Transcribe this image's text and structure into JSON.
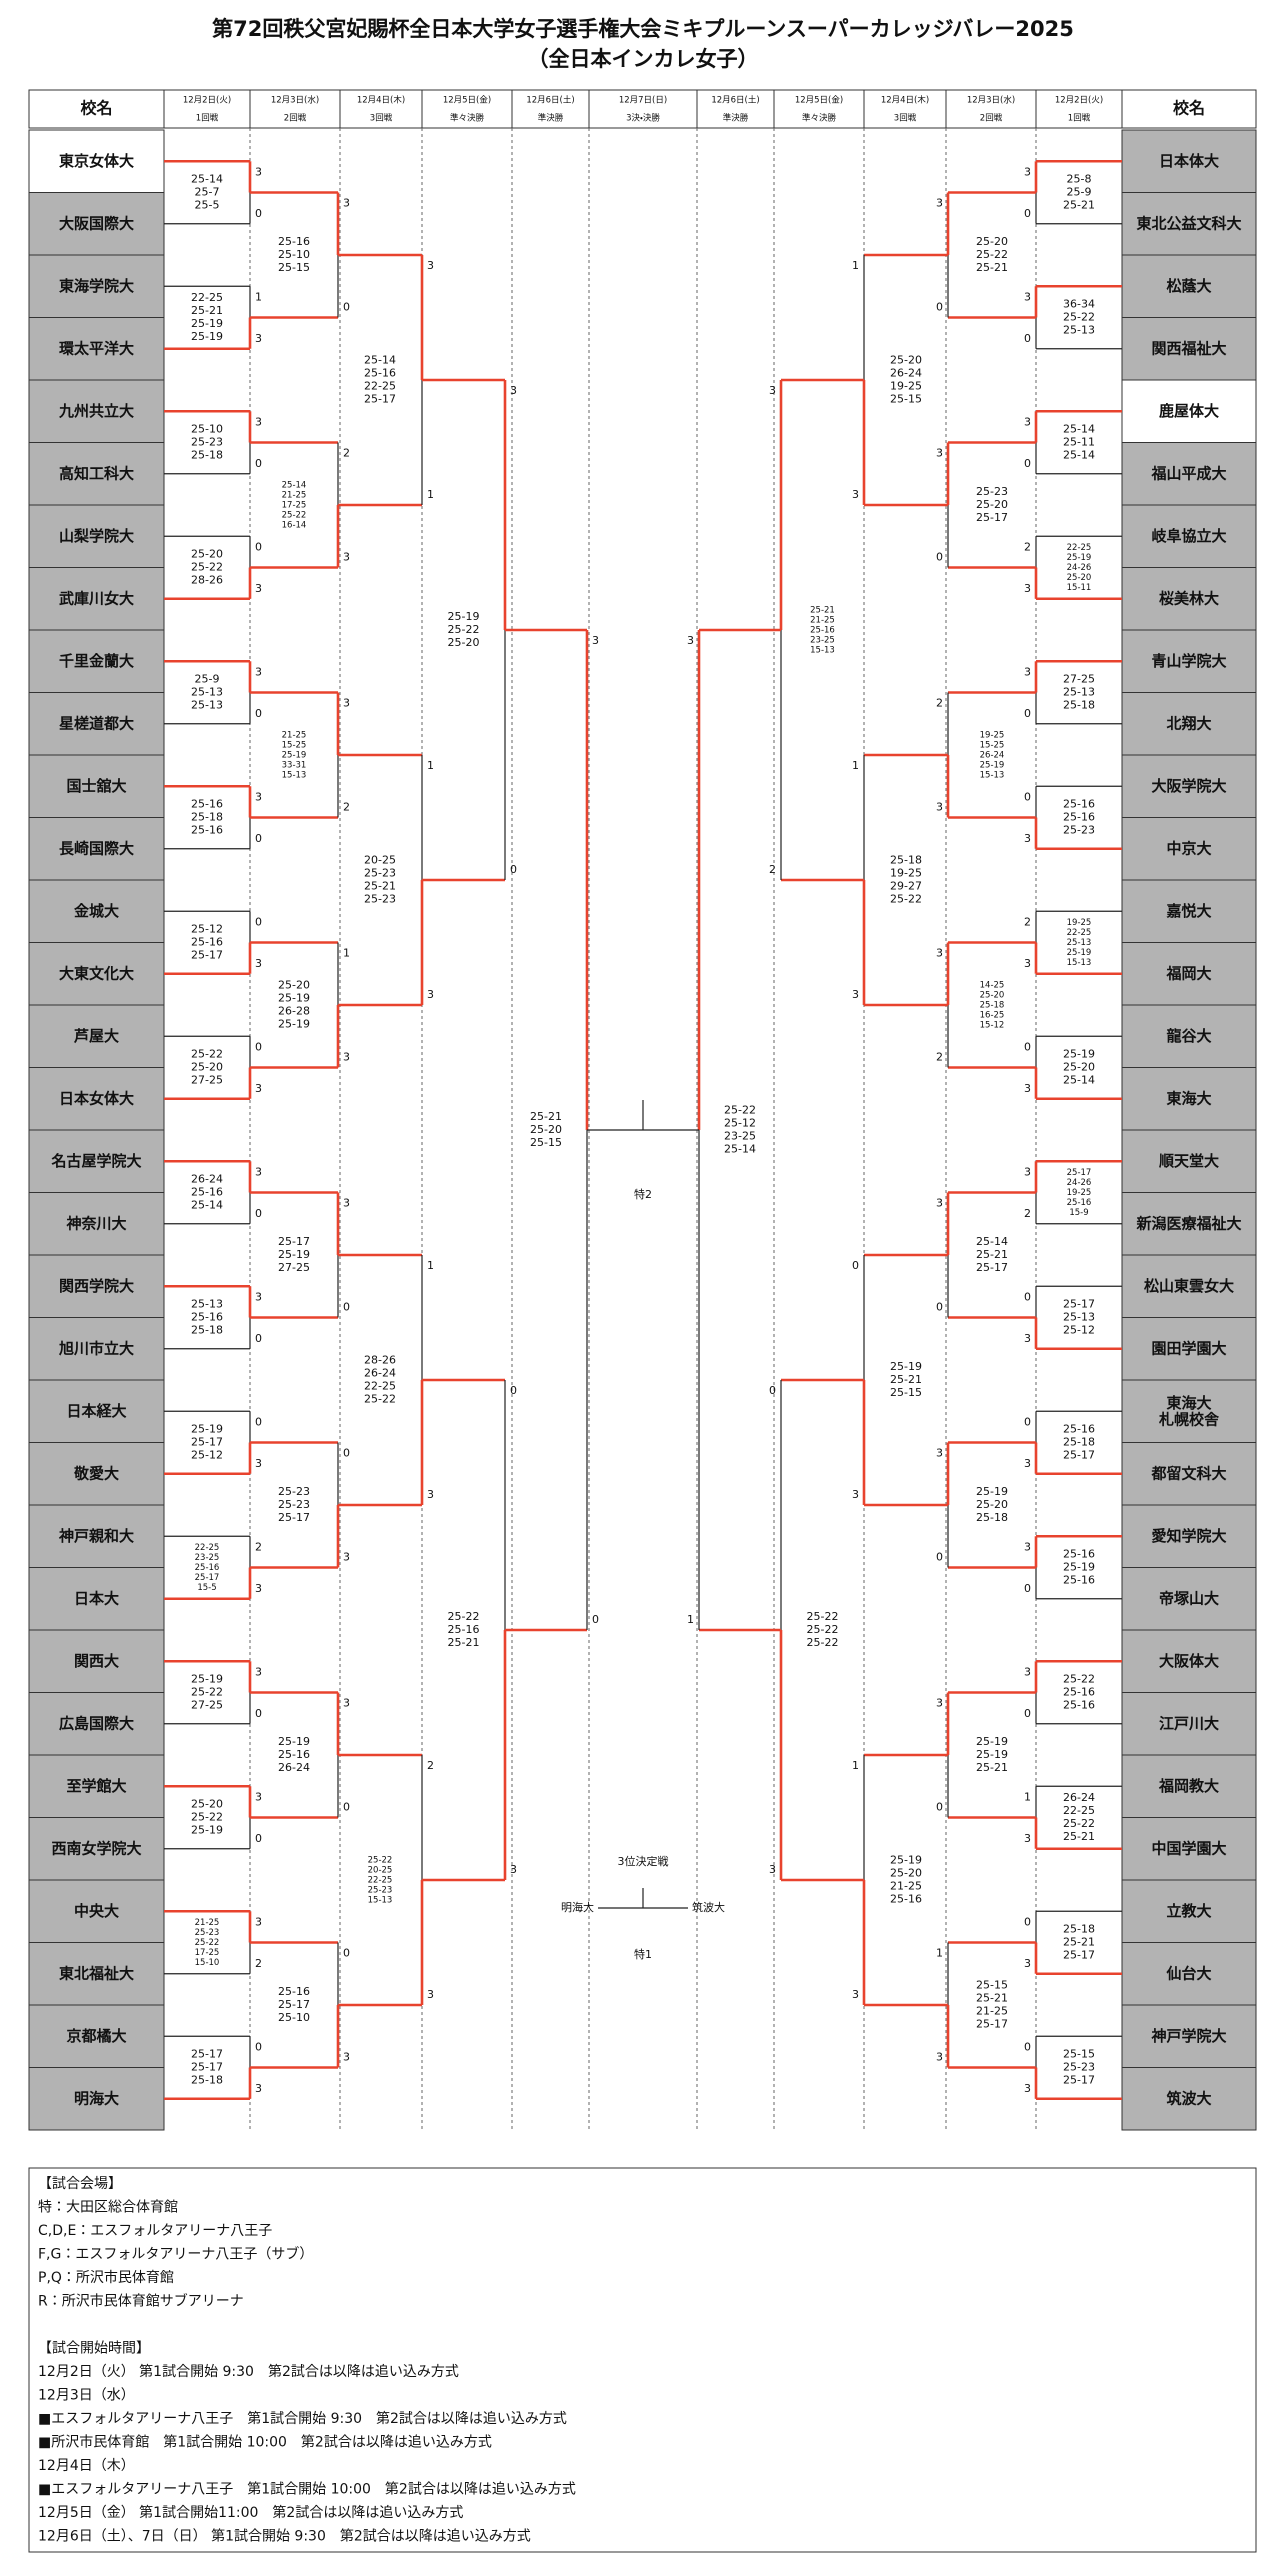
{
  "title": "第72回秩父宮妃賜杯全日本大学女子選手権大会ミキプルーンスーパーカレッジバレー2025",
  "subtitle": "（全日本インカレ女子）",
  "columns": [
    {
      "date": "12月2日(火)",
      "round": "1回戦"
    },
    {
      "date": "12月3日(水)",
      "round": "2回戦"
    },
    {
      "date": "12月4日(木)",
      "round": "3回戦"
    },
    {
      "date": "12月5日(金)",
      "round": "準々決勝"
    },
    {
      "date": "12月6日(土)",
      "round": "準決勝"
    },
    {
      "date": "12月7日(日)",
      "round": "3決・決勝"
    },
    {
      "date": "12月6日(土)",
      "round": "準決勝"
    },
    {
      "date": "12月5日(金)",
      "round": "準々決勝"
    },
    {
      "date": "12月4日(木)",
      "round": "3回戦"
    },
    {
      "date": "12月3日(水)",
      "round": "2回戦"
    },
    {
      "date": "12月2日(火)",
      "round": "1回戦"
    }
  ],
  "left": {
    "header": "校名",
    "teams": [
      "東京女体大",
      "大阪国際大",
      "東海学院大",
      "環太平洋大",
      "九州共立大",
      "高知工科大",
      "山梨学院大",
      "武庫川女大",
      "千里金蘭大",
      "星槎道都大",
      "国士舘大",
      "長崎国際大",
      "金城大",
      "大東文化大",
      "芦屋大",
      "日本女体大",
      "名古屋学院大",
      "神奈川大",
      "関西学院大",
      "旭川市立大",
      "日本経大",
      "敬愛大",
      "神戸親和大",
      "日本大",
      "関西大",
      "広島国際大",
      "至学館大",
      "西南女学院大",
      "中央大",
      "東北福祉大",
      "京都橘大",
      "明海大"
    ],
    "rounds": [
      [
        {
          "scores": [
            "25-14",
            "25-7",
            "25-5"
          ],
          "sets": [
            3,
            0
          ]
        },
        {
          "scores": [
            "22-25",
            "25-21",
            "25-19",
            "25-19"
          ],
          "sets": [
            1,
            3
          ]
        },
        {
          "scores": [
            "25-10",
            "25-23",
            "25-18"
          ],
          "sets": [
            3,
            0
          ]
        },
        {
          "scores": [
            "25-20",
            "25-22",
            "28-26"
          ],
          "sets": [
            0,
            3
          ]
        },
        {
          "scores": [
            "25-9",
            "25-13",
            "25-13"
          ],
          "sets": [
            3,
            0
          ]
        },
        {
          "scores": [
            "25-16",
            "25-18",
            "25-16"
          ],
          "sets": [
            3,
            0
          ]
        },
        {
          "scores": [
            "25-12",
            "25-16",
            "25-17"
          ],
          "sets": [
            0,
            3
          ]
        },
        {
          "scores": [
            "25-22",
            "25-20",
            "27-25"
          ],
          "sets": [
            0,
            3
          ]
        },
        {
          "scores": [
            "26-24",
            "25-16",
            "25-14"
          ],
          "sets": [
            3,
            0
          ]
        },
        {
          "scores": [
            "25-13",
            "25-16",
            "25-18"
          ],
          "sets": [
            3,
            0
          ]
        },
        {
          "scores": [
            "25-19",
            "25-17",
            "25-12"
          ],
          "sets": [
            0,
            3
          ]
        },
        {
          "scores": [
            "22-25",
            "23-25",
            "25-16",
            "25-17",
            "15-5"
          ],
          "sets": [
            2,
            3
          ]
        },
        {
          "scores": [
            "25-19",
            "25-22",
            "27-25"
          ],
          "sets": [
            3,
            0
          ]
        },
        {
          "scores": [
            "25-20",
            "25-22",
            "25-19"
          ],
          "sets": [
            3,
            0
          ]
        },
        {
          "scores": [
            "21-25",
            "25-23",
            "25-22",
            "17-25",
            "15-10"
          ],
          "sets": [
            3,
            2
          ]
        },
        {
          "scores": [
            "25-17",
            "25-17",
            "25-18"
          ],
          "sets": [
            0,
            3
          ]
        }
      ],
      [
        {
          "scores": [
            "25-16",
            "25-10",
            "25-15"
          ],
          "sets": [
            3,
            0
          ]
        },
        {
          "scores": [
            "25-14",
            "21-25",
            "17-25",
            "25-22",
            "16-14"
          ],
          "sets": [
            2,
            3
          ]
        },
        {
          "scores": [
            "21-25",
            "15-25",
            "25-19",
            "33-31",
            "15-13"
          ],
          "sets": [
            3,
            2
          ]
        },
        {
          "scores": [
            "25-20",
            "25-19",
            "26-28",
            "25-19"
          ],
          "sets": [
            1,
            3
          ]
        },
        {
          "scores": [
            "25-17",
            "25-19",
            "27-25"
          ],
          "sets": [
            3,
            0
          ]
        },
        {
          "scores": [
            "25-23",
            "25-23",
            "25-17"
          ],
          "sets": [
            0,
            3
          ]
        },
        {
          "scores": [
            "25-19",
            "25-16",
            "26-24"
          ],
          "sets": [
            3,
            0
          ]
        },
        {
          "scores": [
            "25-16",
            "25-17",
            "25-10"
          ],
          "sets": [
            0,
            3
          ]
        }
      ],
      [
        {
          "scores": [
            "25-14",
            "25-16",
            "22-25",
            "25-17"
          ],
          "sets": [
            3,
            1
          ]
        },
        {
          "scores": [
            "20-25",
            "25-23",
            "25-21",
            "25-23"
          ],
          "sets": [
            1,
            3
          ]
        },
        {
          "scores": [
            "28-26",
            "26-24",
            "22-25",
            "25-22"
          ],
          "sets": [
            1,
            3
          ]
        },
        {
          "scores": [
            "25-22",
            "20-25",
            "22-25",
            "25-23",
            "15-13"
          ],
          "sets": [
            2,
            3
          ]
        }
      ],
      [
        {
          "scores": [
            "25-19",
            "25-22",
            "25-20"
          ],
          "sets": [
            3,
            0
          ]
        },
        {
          "scores": [
            "25-22",
            "25-16",
            "25-21"
          ],
          "sets": [
            0,
            3
          ]
        }
      ],
      [
        {
          "scores": [
            "25-21",
            "25-20",
            "25-15"
          ],
          "sets": [
            3,
            0
          ]
        }
      ]
    ]
  },
  "right": {
    "header": "校名",
    "teams": [
      "日本体大",
      "東北公益文科大",
      "松蔭大",
      "関西福祉大",
      "鹿屋体大",
      "福山平成大",
      "岐阜協立大",
      "桜美林大",
      "青山学院大",
      "北翔大",
      "大阪学院大",
      "中京大",
      "嘉悦大",
      "福岡大",
      "龍谷大",
      "東海大",
      "順天堂大",
      "新潟医療福祉大",
      "松山東雲女大",
      "園田学園大",
      "東海大\n札幌校舎",
      "都留文科大",
      "愛知学院大",
      "帝塚山大",
      "大阪体大",
      "江戸川大",
      "福岡教大",
      "中国学園大",
      "立教大",
      "仙台大",
      "神戸学院大",
      "筑波大"
    ],
    "rounds": [
      [
        {
          "scores": [
            "25-8",
            "25-9",
            "25-21"
          ],
          "sets": [
            3,
            0
          ]
        },
        {
          "scores": [
            "36-34",
            "25-22",
            "25-13"
          ],
          "sets": [
            3,
            0
          ]
        },
        {
          "scores": [
            "25-14",
            "25-11",
            "25-14"
          ],
          "sets": [
            3,
            0
          ]
        },
        {
          "scores": [
            "22-25",
            "25-19",
            "24-26",
            "25-20",
            "15-11"
          ],
          "sets": [
            2,
            3
          ]
        },
        {
          "scores": [
            "27-25",
            "25-13",
            "25-18"
          ],
          "sets": [
            3,
            0
          ]
        },
        {
          "scores": [
            "25-16",
            "25-16",
            "25-23"
          ],
          "sets": [
            0,
            3
          ]
        },
        {
          "scores": [
            "19-25",
            "22-25",
            "25-13",
            "25-19",
            "15-13"
          ],
          "sets": [
            2,
            3
          ]
        },
        {
          "scores": [
            "25-19",
            "25-20",
            "25-14"
          ],
          "sets": [
            0,
            3
          ]
        },
        {
          "scores": [
            "25-17",
            "24-26",
            "19-25",
            "25-16",
            "15-9"
          ],
          "sets": [
            3,
            2
          ]
        },
        {
          "scores": [
            "25-17",
            "25-13",
            "25-12"
          ],
          "sets": [
            0,
            3
          ]
        },
        {
          "scores": [
            "25-16",
            "25-18",
            "25-17"
          ],
          "sets": [
            0,
            3
          ]
        },
        {
          "scores": [
            "25-16",
            "25-19",
            "25-16"
          ],
          "sets": [
            3,
            0
          ]
        },
        {
          "scores": [
            "25-22",
            "25-16",
            "25-16"
          ],
          "sets": [
            3,
            0
          ]
        },
        {
          "scores": [
            "26-24",
            "22-25",
            "25-22",
            "25-21"
          ],
          "sets": [
            1,
            3
          ]
        },
        {
          "scores": [
            "25-18",
            "25-21",
            "25-17"
          ],
          "sets": [
            0,
            3
          ]
        },
        {
          "scores": [
            "25-15",
            "25-23",
            "25-17"
          ],
          "sets": [
            0,
            3
          ]
        }
      ],
      [
        {
          "scores": [
            "25-20",
            "25-22",
            "25-21"
          ],
          "sets": [
            3,
            0
          ]
        },
        {
          "scores": [
            "25-23",
            "25-20",
            "25-17"
          ],
          "sets": [
            3,
            0
          ]
        },
        {
          "scores": [
            "19-25",
            "15-25",
            "26-24",
            "25-19",
            "15-13"
          ],
          "sets": [
            2,
            3
          ]
        },
        {
          "scores": [
            "14-25",
            "25-20",
            "25-18",
            "16-25",
            "15-12"
          ],
          "sets": [
            3,
            2
          ]
        },
        {
          "scores": [
            "25-14",
            "25-21",
            "25-17"
          ],
          "sets": [
            3,
            0
          ]
        },
        {
          "scores": [
            "25-19",
            "25-20",
            "25-18"
          ],
          "sets": [
            3,
            0
          ]
        },
        {
          "scores": [
            "25-19",
            "25-19",
            "25-21"
          ],
          "sets": [
            3,
            0
          ]
        },
        {
          "scores": [
            "25-15",
            "25-21",
            "21-25",
            "25-17"
          ],
          "sets": [
            1,
            3
          ]
        }
      ],
      [
        {
          "scores": [
            "25-20",
            "26-24",
            "19-25",
            "25-15"
          ],
          "sets": [
            1,
            3
          ]
        },
        {
          "scores": [
            "25-18",
            "19-25",
            "29-27",
            "25-22"
          ],
          "sets": [
            1,
            3
          ]
        },
        {
          "scores": [
            "25-19",
            "25-21",
            "25-15"
          ],
          "sets": [
            0,
            3
          ]
        },
        {
          "scores": [
            "25-19",
            "25-20",
            "21-25",
            "25-16"
          ],
          "sets": [
            1,
            3
          ]
        }
      ],
      [
        {
          "scores": [
            "25-21",
            "21-25",
            "25-16",
            "23-25",
            "15-13"
          ],
          "sets": [
            3,
            2
          ]
        },
        {
          "scores": [
            "25-22",
            "25-22",
            "25-22"
          ],
          "sets": [
            0,
            3
          ]
        }
      ],
      [
        {
          "scores": [
            "25-22",
            "25-12",
            "23-25",
            "25-14"
          ],
          "sets": [
            3,
            1
          ]
        }
      ]
    ]
  },
  "final": {
    "label": "特2"
  },
  "third_place": {
    "title": "3位決定戦",
    "teams": [
      "明海大",
      "筑波大"
    ],
    "label": "特1"
  },
  "notes": {
    "lines": [
      "【試合会場】",
      "特：大田区総合体育館",
      "C,D,E：エスフォルタアリーナ八王子",
      "F,G：エスフォルタアリーナ八王子（サブ）",
      "P,Q：所沢市民体育館",
      "R：所沢市民体育館サブアリーナ",
      null,
      "【試合開始時間】",
      "12月2日（火） 第1試合開始 9:30　第2試合は以降は追い込み方式",
      "12月3日（水）",
      "■エスフォルタアリーナ八王子　第1試合開始 9:30　第2試合は以降は追い込み方式",
      "■所沢市民体育館　第1試合開始 10:00　第2試合は以降は追い込み方式",
      "12月4日（木）",
      "■エスフォルタアリーナ八王子　第1試合開始 10:00　第2試合は以降は追い込み方式",
      "12月5日（金） 第1試合開始11:00　第2試合は以降は追い込み方式",
      "12月6日（土）、7日（日） 第1試合開始 9:30　第2試合は以降は追い込み方式"
    ]
  }
}
